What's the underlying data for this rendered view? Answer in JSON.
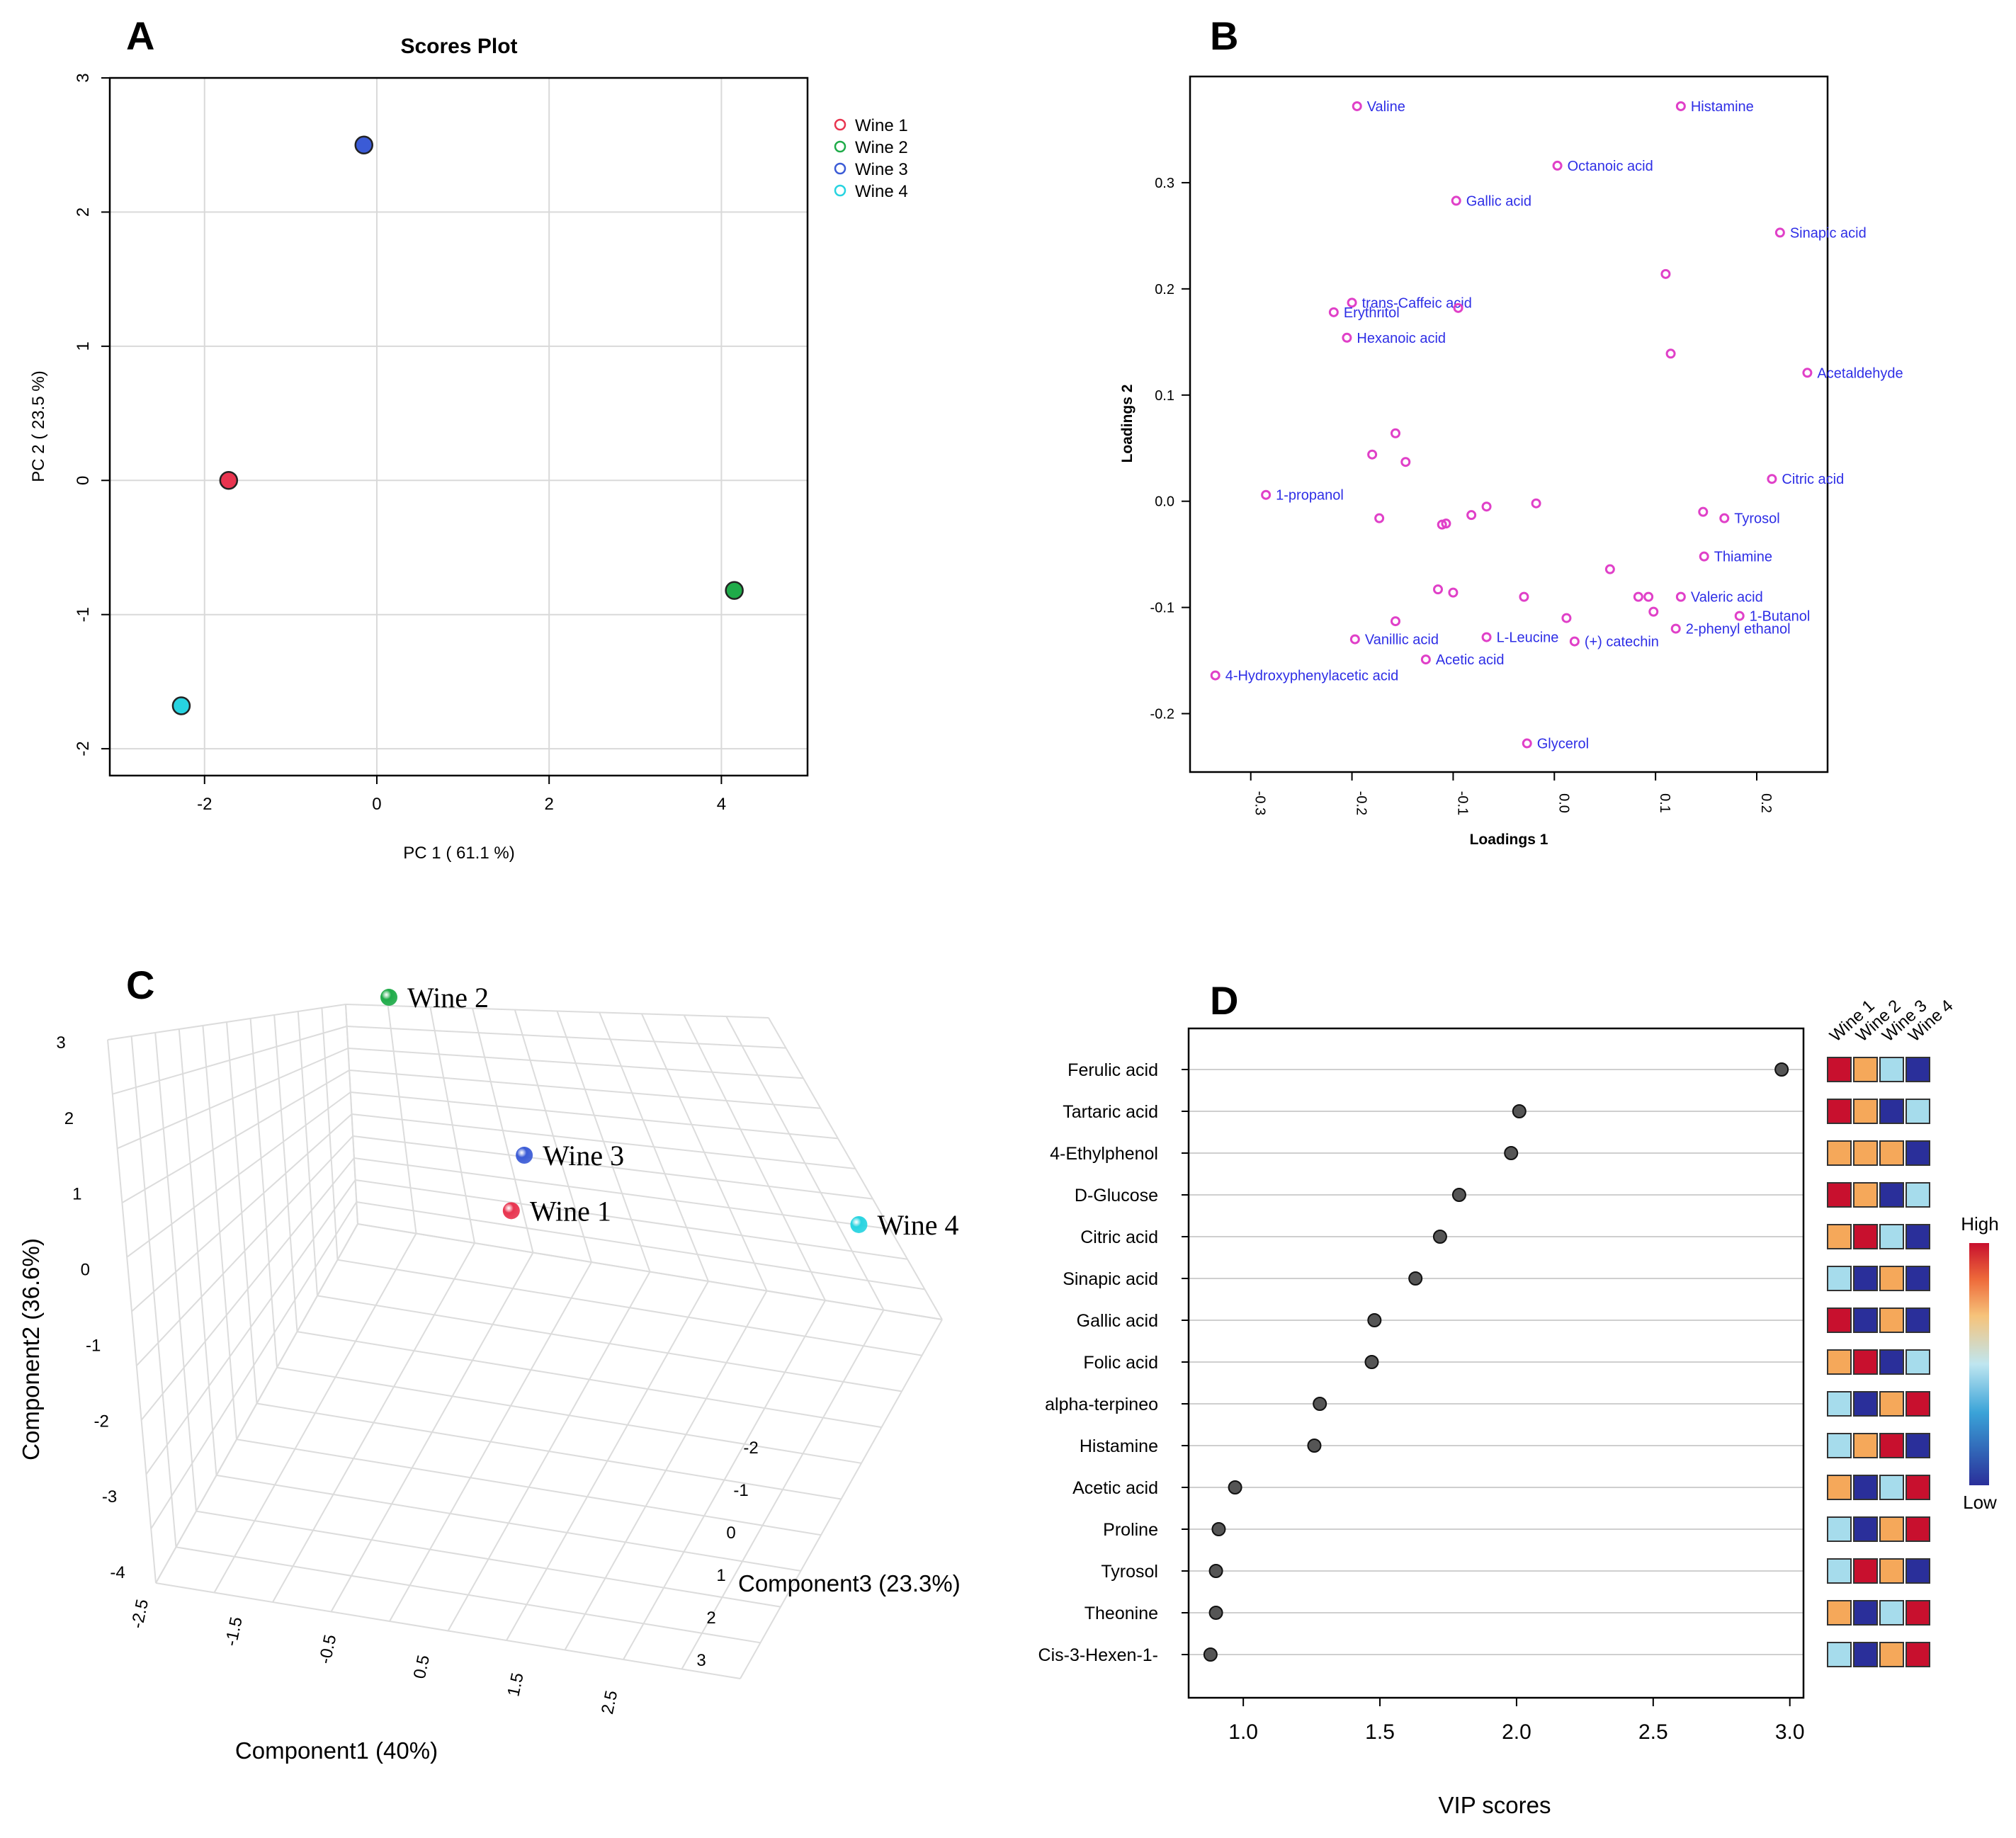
{
  "colors": {
    "wine1": "#e8344f",
    "wine2": "#1fab49",
    "wine3": "#3b5bd6",
    "wine4": "#27d3e0",
    "loading_point": "#e040c8",
    "loading_label": "#2e2ee6",
    "vip_dot": "#555555",
    "heat_high": "#c8102e",
    "heat_mid_high": "#f5a85a",
    "heat_mid_low": "#a6dcec",
    "heat_low": "#2a2f9a"
  },
  "chart_data": [
    {
      "panel": "A",
      "type": "scatter",
      "title": "Scores Plot",
      "xlabel": "PC 1 ( 61.1 %)",
      "ylabel": "PC 2 ( 23.5 %)",
      "xlim": [
        -3.1,
        5.0
      ],
      "ylim": [
        -2.2,
        3.0
      ],
      "xticks": [
        "-2",
        "0",
        "2",
        "4"
      ],
      "yticks": [
        "-2",
        "-1",
        "0",
        "1",
        "2",
        "3"
      ],
      "grid": true,
      "legend": "right",
      "series": [
        {
          "name": "Wine 1",
          "x": -1.72,
          "y": 0.0,
          "color_key": "wine1"
        },
        {
          "name": "Wine 2",
          "x": 4.15,
          "y": -0.82,
          "color_key": "wine2"
        },
        {
          "name": "Wine 3",
          "x": -0.15,
          "y": 2.5,
          "color_key": "wine3"
        },
        {
          "name": "Wine 4",
          "x": -2.27,
          "y": -1.68,
          "color_key": "wine4"
        }
      ]
    },
    {
      "panel": "B",
      "type": "scatter",
      "title": "",
      "xlabel": "Loadings 1",
      "ylabel": "Loadings 2",
      "xlim": [
        -0.36,
        0.27
      ],
      "ylim": [
        -0.255,
        0.4
      ],
      "xticks": [
        "-0.3",
        "-0.2",
        "-0.1",
        "0.0",
        "0.1",
        "0.2"
      ],
      "yticks": [
        "-0.2",
        "-0.1",
        "0.0",
        "0.1",
        "0.2",
        "0.3"
      ],
      "grid": false,
      "points": [
        {
          "x": -0.195,
          "y": 0.372,
          "label": "Valine"
        },
        {
          "x": 0.125,
          "y": 0.372,
          "label": "Histamine"
        },
        {
          "x": 0.003,
          "y": 0.316,
          "label": "Octanoic acid"
        },
        {
          "x": -0.097,
          "y": 0.283,
          "label": "Gallic acid"
        },
        {
          "x": 0.223,
          "y": 0.253,
          "label": "Sinapic acid"
        },
        {
          "x": 0.11,
          "y": 0.214,
          "label": ""
        },
        {
          "x": -0.2,
          "y": 0.187,
          "label": "trans-Caffeic acid"
        },
        {
          "x": -0.218,
          "y": 0.178,
          "label": "Erythritol"
        },
        {
          "x": -0.095,
          "y": 0.182,
          "label": ""
        },
        {
          "x": -0.205,
          "y": 0.154,
          "label": "Hexanoic acid"
        },
        {
          "x": 0.115,
          "y": 0.139,
          "label": ""
        },
        {
          "x": 0.25,
          "y": 0.121,
          "label": "Acetaldehyde"
        },
        {
          "x": -0.157,
          "y": 0.064,
          "label": ""
        },
        {
          "x": -0.18,
          "y": 0.044,
          "label": ""
        },
        {
          "x": -0.147,
          "y": 0.037,
          "label": ""
        },
        {
          "x": 0.215,
          "y": 0.021,
          "label": "Citric acid"
        },
        {
          "x": -0.285,
          "y": 0.006,
          "label": "1-propanol"
        },
        {
          "x": -0.018,
          "y": -0.002,
          "label": ""
        },
        {
          "x": -0.067,
          "y": -0.005,
          "label": ""
        },
        {
          "x": 0.147,
          "y": -0.01,
          "label": ""
        },
        {
          "x": -0.082,
          "y": -0.013,
          "label": ""
        },
        {
          "x": 0.168,
          "y": -0.016,
          "label": "Tyrosol"
        },
        {
          "x": -0.173,
          "y": -0.016,
          "label": ""
        },
        {
          "x": -0.107,
          "y": -0.021,
          "label": ""
        },
        {
          "x": -0.111,
          "y": -0.022,
          "label": ""
        },
        {
          "x": 0.148,
          "y": -0.052,
          "label": "Thiamine"
        },
        {
          "x": 0.055,
          "y": -0.064,
          "label": ""
        },
        {
          "x": -0.115,
          "y": -0.083,
          "label": ""
        },
        {
          "x": -0.1,
          "y": -0.086,
          "label": ""
        },
        {
          "x": -0.03,
          "y": -0.09,
          "label": ""
        },
        {
          "x": 0.083,
          "y": -0.09,
          "label": ""
        },
        {
          "x": 0.093,
          "y": -0.09,
          "label": ""
        },
        {
          "x": 0.125,
          "y": -0.09,
          "label": "Valeric acid"
        },
        {
          "x": 0.098,
          "y": -0.104,
          "label": ""
        },
        {
          "x": 0.183,
          "y": -0.108,
          "label": "1-Butanol"
        },
        {
          "x": -0.157,
          "y": -0.113,
          "label": ""
        },
        {
          "x": 0.012,
          "y": -0.11,
          "label": ""
        },
        {
          "x": 0.12,
          "y": -0.12,
          "label": "2-phenyl ethanol"
        },
        {
          "x": -0.197,
          "y": -0.13,
          "label": "Vanillic acid"
        },
        {
          "x": -0.067,
          "y": -0.128,
          "label": "L-Leucine"
        },
        {
          "x": 0.02,
          "y": -0.132,
          "label": "(+) catechin"
        },
        {
          "x": -0.127,
          "y": -0.149,
          "label": "Acetic acid"
        },
        {
          "x": -0.335,
          "y": -0.164,
          "label": "4-Hydroxyphenylacetic acid"
        },
        {
          "x": -0.027,
          "y": -0.228,
          "label": "Glycerol"
        }
      ]
    },
    {
      "panel": "C",
      "type": "scatter",
      "subtype": "3d",
      "xlabel": "Component1 (40%)",
      "ylabel": "Component2 (36.6%)",
      "zlabel": "Component3 (23.3%)",
      "xticks": [
        "-2.5",
        "-1.5",
        "-0.5",
        "0.5",
        "1.5",
        "2.5"
      ],
      "yticks": [
        "3",
        "2",
        "1",
        "0",
        "-1",
        "-2",
        "-3",
        "-4"
      ],
      "zticks": [
        "-2",
        "-1",
        "0",
        "1",
        "2",
        "3"
      ],
      "points": [
        {
          "label": "Wine 1",
          "component1": -0.9,
          "component2": -1.0,
          "component3": -1.3,
          "color_key": "wine1"
        },
        {
          "label": "Wine 2",
          "component1": -2.2,
          "component2": 2.95,
          "component3": -2.2,
          "color_key": "wine2"
        },
        {
          "label": "Wine 3",
          "component1": -0.8,
          "component2": 0.6,
          "component3": -1.4,
          "color_key": "wine3"
        },
        {
          "label": "Wine 4",
          "component1": 2.4,
          "component2": 2.4,
          "component3": -0.5,
          "color_key": "wine4"
        }
      ]
    },
    {
      "panel": "D",
      "type": "scatter",
      "subtype": "vip",
      "xlabel": "VIP scores",
      "xlim": [
        0.8,
        3.05
      ],
      "xticks": [
        "1.0",
        "1.5",
        "2.0",
        "2.5",
        "3.0"
      ],
      "legend_title_high": "High",
      "legend_title_low": "Low",
      "column_labels": [
        "Wine 1",
        "Wine 2",
        "Wine 3",
        "Wine 4"
      ],
      "features": [
        {
          "name": "Ferulic acid",
          "vip": 2.97,
          "levels": [
            4,
            3,
            2,
            1
          ]
        },
        {
          "name": "Tartaric acid",
          "vip": 2.01,
          "levels": [
            4,
            3,
            1,
            2
          ]
        },
        {
          "name": "4-Ethylphenol",
          "vip": 1.98,
          "levels": [
            3,
            3,
            3,
            1
          ]
        },
        {
          "name": "D-Glucose",
          "vip": 1.79,
          "levels": [
            4,
            3,
            1,
            2
          ]
        },
        {
          "name": "Citric acid",
          "vip": 1.72,
          "levels": [
            3,
            4,
            2,
            1
          ]
        },
        {
          "name": "Sinapic acid",
          "vip": 1.63,
          "levels": [
            2,
            1,
            3,
            1
          ]
        },
        {
          "name": "Gallic acid",
          "vip": 1.48,
          "levels": [
            4,
            1,
            3,
            1
          ]
        },
        {
          "name": "Folic acid",
          "vip": 1.47,
          "levels": [
            3,
            4,
            1,
            2
          ]
        },
        {
          "name": "alpha-terpineo",
          "vip": 1.28,
          "levels": [
            2,
            1,
            3,
            4
          ]
        },
        {
          "name": "Histamine",
          "vip": 1.26,
          "levels": [
            2,
            3,
            4,
            1
          ]
        },
        {
          "name": "Acetic acid",
          "vip": 0.97,
          "levels": [
            3,
            1,
            2,
            4
          ]
        },
        {
          "name": "Proline",
          "vip": 0.91,
          "levels": [
            2,
            1,
            3,
            4
          ]
        },
        {
          "name": "Tyrosol",
          "vip": 0.9,
          "levels": [
            2,
            4,
            3,
            1
          ]
        },
        {
          "name": "Theonine",
          "vip": 0.9,
          "levels": [
            3,
            1,
            2,
            4
          ]
        },
        {
          "name": "Cis-3-Hexen-1-",
          "vip": 0.88,
          "levels": [
            2,
            1,
            3,
            4
          ]
        }
      ]
    }
  ],
  "panel_letters": [
    "A",
    "B",
    "C",
    "D"
  ]
}
